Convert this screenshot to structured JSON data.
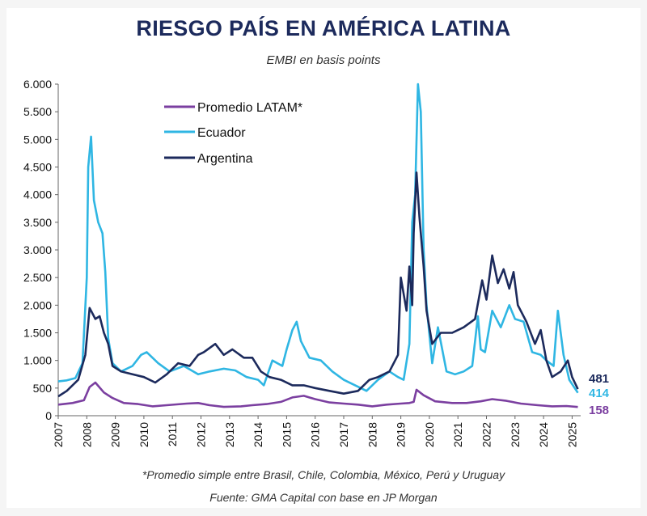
{
  "chart_data": {
    "type": "line",
    "title": "RIESGO PAÍS EN AMÉRICA LATINA",
    "subtitle": "EMBI en basis points",
    "xlabel": "",
    "ylabel": "",
    "ylim": [
      0,
      6000
    ],
    "xlim": [
      2007,
      2025.3
    ],
    "y_ticks": [
      0,
      500,
      1000,
      1500,
      2000,
      2500,
      3000,
      3500,
      4000,
      4500,
      5000,
      5500,
      6000
    ],
    "y_tick_labels": [
      "0",
      "500",
      "1.000",
      "1.500",
      "2.000",
      "2.500",
      "3.000",
      "3.500",
      "4.000",
      "4.500",
      "5.000",
      "5.500",
      "6.000"
    ],
    "x_ticks": [
      "2007",
      "2008",
      "2009",
      "2010",
      "2011",
      "2012",
      "2013",
      "2014",
      "2015",
      "2016",
      "2017",
      "2018",
      "2019",
      "2020",
      "2021",
      "2022",
      "2023",
      "2024",
      "2025"
    ],
    "legend": [
      "Promedio LATAM*",
      "Ecuador",
      "Argentina"
    ],
    "series": [
      {
        "name": "Promedio LATAM*",
        "color": "#7b3fa0",
        "x": [
          2007.0,
          2007.5,
          2007.9,
          2008.1,
          2008.3,
          2008.6,
          2008.9,
          2009.3,
          2009.8,
          2010.3,
          2010.8,
          2011.5,
          2011.9,
          2012.3,
          2012.8,
          2013.4,
          2013.8,
          2014.3,
          2014.8,
          2015.2,
          2015.6,
          2016.0,
          2016.5,
          2017.0,
          2017.5,
          2018.0,
          2018.5,
          2019.0,
          2019.3,
          2019.45,
          2019.55,
          2019.8,
          2020.2,
          2020.8,
          2021.3,
          2021.8,
          2022.2,
          2022.7,
          2023.2,
          2023.8,
          2024.3,
          2024.8,
          2025.2
        ],
        "values": [
          200,
          230,
          280,
          520,
          600,
          420,
          320,
          230,
          210,
          170,
          190,
          220,
          230,
          190,
          160,
          170,
          190,
          210,
          250,
          330,
          360,
          300,
          240,
          220,
          200,
          170,
          200,
          220,
          230,
          250,
          470,
          370,
          260,
          230,
          230,
          260,
          300,
          270,
          220,
          190,
          170,
          175,
          158
        ]
      },
      {
        "name": "Ecuador",
        "color": "#2fb6e3",
        "x": [
          2007.0,
          2007.3,
          2007.6,
          2007.85,
          2008.0,
          2008.05,
          2008.15,
          2008.25,
          2008.4,
          2008.55,
          2008.65,
          2008.75,
          2008.9,
          2009.2,
          2009.6,
          2009.9,
          2010.1,
          2010.5,
          2010.9,
          2011.4,
          2011.9,
          2012.3,
          2012.8,
          2013.2,
          2013.6,
          2014.0,
          2014.2,
          2014.5,
          2014.85,
          2015.0,
          2015.2,
          2015.35,
          2015.5,
          2015.8,
          2016.2,
          2016.6,
          2017.0,
          2017.4,
          2017.8,
          2018.2,
          2018.6,
          2018.9,
          2019.1,
          2019.3,
          2019.4,
          2019.5,
          2019.6,
          2019.7,
          2019.8,
          2019.9,
          2020.1,
          2020.3,
          2020.6,
          2020.9,
          2021.2,
          2021.5,
          2021.7,
          2021.8,
          2021.95,
          2022.2,
          2022.5,
          2022.8,
          2023.0,
          2023.3,
          2023.6,
          2023.9,
          2024.1,
          2024.35,
          2024.5,
          2024.7,
          2024.9,
          2025.2
        ],
        "values": [
          620,
          640,
          680,
          950,
          2500,
          4500,
          5050,
          3900,
          3500,
          3300,
          2600,
          1400,
          950,
          800,
          900,
          1100,
          1150,
          950,
          800,
          900,
          750,
          800,
          850,
          820,
          700,
          650,
          550,
          1000,
          900,
          1200,
          1550,
          1700,
          1350,
          1050,
          1000,
          800,
          650,
          550,
          450,
          650,
          800,
          700,
          650,
          1300,
          3500,
          4000,
          6000,
          5500,
          3000,
          2000,
          950,
          1600,
          800,
          750,
          800,
          900,
          1800,
          1200,
          1150,
          1900,
          1600,
          2000,
          1750,
          1700,
          1150,
          1100,
          1000,
          900,
          1900,
          1100,
          650,
          414
        ]
      },
      {
        "name": "Argentina",
        "color": "#1c2a5c",
        "x": [
          2007.0,
          2007.3,
          2007.7,
          2007.95,
          2008.1,
          2008.3,
          2008.45,
          2008.6,
          2008.75,
          2008.9,
          2009.2,
          2009.6,
          2010.0,
          2010.4,
          2010.8,
          2011.2,
          2011.6,
          2011.9,
          2012.1,
          2012.5,
          2012.8,
          2013.1,
          2013.5,
          2013.8,
          2014.1,
          2014.4,
          2014.8,
          2015.2,
          2015.6,
          2016.0,
          2016.5,
          2017.0,
          2017.5,
          2017.9,
          2018.2,
          2018.6,
          2018.9,
          2019.0,
          2019.2,
          2019.3,
          2019.4,
          2019.45,
          2019.55,
          2019.65,
          2019.8,
          2019.9,
          2020.1,
          2020.4,
          2020.8,
          2021.2,
          2021.6,
          2021.85,
          2022.0,
          2022.2,
          2022.4,
          2022.6,
          2022.8,
          2022.95,
          2023.1,
          2023.4,
          2023.7,
          2023.9,
          2024.1,
          2024.3,
          2024.6,
          2024.85,
          2025.0,
          2025.2
        ],
        "values": [
          350,
          450,
          650,
          1100,
          1950,
          1750,
          1800,
          1500,
          1300,
          900,
          800,
          750,
          700,
          600,
          750,
          950,
          900,
          1100,
          1150,
          1300,
          1100,
          1200,
          1050,
          1050,
          800,
          700,
          650,
          550,
          550,
          500,
          450,
          400,
          450,
          650,
          700,
          800,
          1100,
          2500,
          1900,
          2700,
          2000,
          3300,
          4400,
          3600,
          2700,
          1900,
          1300,
          1500,
          1500,
          1600,
          1750,
          2450,
          2100,
          2900,
          2400,
          2650,
          2300,
          2600,
          2000,
          1700,
          1300,
          1550,
          1000,
          700,
          800,
          1000,
          700,
          481
        ]
      }
    ],
    "end_labels": [
      {
        "series": "Argentina",
        "text": "481",
        "color": "#1c2a5c",
        "value": 481
      },
      {
        "series": "Ecuador",
        "text": "414",
        "color": "#2fb6e3",
        "value": 414
      },
      {
        "series": "Promedio LATAM*",
        "text": "158",
        "color": "#7b3fa0",
        "value": 158
      }
    ]
  },
  "footnote": "*Promedio simple entre Brasil, Chile, Colombia, México, Perú y Uruguay",
  "source": "Fuente: GMA Capital con base en JP Morgan"
}
